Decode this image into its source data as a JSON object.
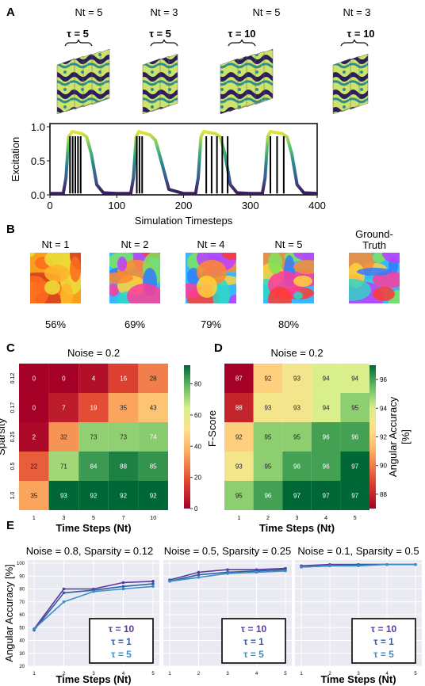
{
  "panels": {
    "A": "A",
    "B": "B",
    "C": "C",
    "D": "D",
    "E": "E"
  },
  "panelA": {
    "groups": [
      {
        "nt_label": "Nt = 5",
        "tau_label": "τ = 5",
        "frames": 5
      },
      {
        "nt_label": "Nt = 3",
        "tau_label": "τ = 5",
        "frames": 3
      },
      {
        "nt_label": "Nt = 5",
        "tau_label": "τ = 10",
        "frames": 5
      },
      {
        "nt_label": "Nt = 3",
        "tau_label": "τ = 10",
        "frames": 3
      }
    ]
  },
  "panelB": {
    "items": [
      {
        "label": "Nt = 1",
        "accuracy": "56%"
      },
      {
        "label": "Nt = 2",
        "accuracy": "69%"
      },
      {
        "label": "Nt = 4",
        "accuracy": "79%"
      },
      {
        "label": "Nt = 5",
        "accuracy": "80%"
      },
      {
        "label": "Ground-Truth",
        "accuracy": ""
      }
    ]
  },
  "colors": {
    "tau10": "#5b3a9e",
    "tau1": "#2e5ea8",
    "tau5": "#3a8fc6",
    "grid_bg": "#e9eaf2"
  },
  "chart_data": [
    {
      "id": "A",
      "type": "line",
      "xlabel": "Simulation Timesteps",
      "ylabel": "Excitation",
      "xlim": [
        0,
        400
      ],
      "ylim": [
        0,
        1.0
      ],
      "xticks": [
        "0",
        "100",
        "200",
        "300",
        "400"
      ],
      "yticks": [
        "0.0",
        "0.5",
        "1.0"
      ],
      "series": [
        {
          "x": [
            0,
            20,
            24,
            28,
            33,
            48,
            55,
            62,
            70,
            80,
            100,
            121,
            125,
            129,
            133,
            150,
            158,
            168,
            178,
            200,
            218,
            222,
            226,
            230,
            248,
            255,
            262,
            270,
            280,
            300,
            318,
            322,
            326,
            330,
            348,
            355,
            362,
            370,
            380,
            400
          ],
          "y": [
            0.02,
            0.02,
            0.25,
            0.85,
            0.93,
            0.9,
            0.85,
            0.6,
            0.15,
            0.03,
            0.02,
            0.02,
            0.25,
            0.85,
            0.93,
            0.88,
            0.8,
            0.45,
            0.08,
            0.02,
            0.02,
            0.25,
            0.85,
            0.93,
            0.9,
            0.85,
            0.6,
            0.15,
            0.03,
            0.02,
            0.02,
            0.25,
            0.85,
            0.93,
            0.9,
            0.85,
            0.6,
            0.15,
            0.03,
            0.02
          ]
        }
      ],
      "vlines": [
        [
          30,
          34,
          38,
          42,
          46
        ],
        [
          130,
          134,
          138
        ],
        [
          234,
          242,
          250,
          258,
          266
        ],
        [
          330,
          340,
          350
        ]
      ]
    },
    {
      "id": "C",
      "type": "heatmap",
      "title": "Noise = 0.2",
      "xlabel": "Time Steps (Nt)",
      "ylabel": "Sparsity",
      "colorbar_label": "F-Score",
      "x": [
        "1",
        "3",
        "5",
        "7",
        "10"
      ],
      "y": [
        "0.12",
        "0.17",
        "0.25",
        "0.5",
        "1.0"
      ],
      "values": [
        [
          0,
          0,
          4,
          16,
          28
        ],
        [
          0,
          7,
          19,
          35,
          43
        ],
        [
          2,
          32,
          73,
          73,
          74
        ],
        [
          22,
          71,
          84,
          88,
          85
        ],
        [
          35,
          93,
          92,
          92,
          92
        ]
      ],
      "colorbar_ticks": [
        "0",
        "20",
        "40",
        "60",
        "80"
      ],
      "vmin": 0,
      "vmax": 92
    },
    {
      "id": "D",
      "type": "heatmap",
      "title": "Noise = 0.2",
      "xlabel": "Time Steps (Nt)",
      "ylabel": "",
      "colorbar_label": "Angular Accuracy [%]",
      "x": [
        "1",
        "2",
        "3",
        "4",
        "5"
      ],
      "y": [
        "",
        "",
        "",
        "",
        ""
      ],
      "values": [
        [
          87,
          92,
          93,
          94,
          94
        ],
        [
          88,
          93,
          93,
          94,
          95
        ],
        [
          92,
          95,
          95,
          96,
          96
        ],
        [
          93,
          95,
          96,
          96,
          97
        ],
        [
          95,
          96,
          97,
          97,
          97
        ]
      ],
      "colorbar_ticks": [
        "88",
        "90",
        "92",
        "94",
        "96"
      ],
      "vmin": 87,
      "vmax": 97
    },
    {
      "id": "E1",
      "type": "line",
      "title": "Noise = 0.8, Sparsity = 0.12",
      "xlabel": "Time Steps (Nt)",
      "ylabel": "Angular Accuracy [%]",
      "x": [
        1,
        2,
        3,
        4,
        5
      ],
      "ylim": [
        20,
        100
      ],
      "yticks": [
        "20",
        "30",
        "40",
        "50",
        "60",
        "70",
        "80",
        "90",
        "100"
      ],
      "series": [
        {
          "name": "τ = 10",
          "values": [
            49,
            80,
            80,
            85,
            86
          ]
        },
        {
          "name": "τ = 1",
          "values": [
            48,
            77,
            79,
            82,
            84
          ]
        },
        {
          "name": "τ = 5",
          "values": [
            49,
            70,
            78,
            80,
            82
          ]
        }
      ]
    },
    {
      "id": "E2",
      "type": "line",
      "title": "Noise = 0.5, Sparsity = 0.25",
      "xlabel": "",
      "x": [
        1,
        2,
        3,
        4,
        5
      ],
      "ylim": [
        20,
        100
      ],
      "series": [
        {
          "name": "τ = 10",
          "values": [
            87,
            93,
            95,
            95,
            96
          ]
        },
        {
          "name": "τ = 1",
          "values": [
            86,
            91,
            93,
            94,
            95
          ]
        },
        {
          "name": "τ = 5",
          "values": [
            86,
            89,
            92,
            93,
            94
          ]
        }
      ]
    },
    {
      "id": "E3",
      "type": "line",
      "title": "Noise = 0.1, Sparsity = 0.5",
      "xlabel": "Time Steps (Nt)",
      "x": [
        1,
        2,
        3,
        4,
        5
      ],
      "ylim": [
        20,
        100
      ],
      "series": [
        {
          "name": "τ = 10",
          "values": [
            98,
            99,
            99,
            99,
            99
          ]
        },
        {
          "name": "τ = 1",
          "values": [
            97,
            98,
            99,
            99,
            99
          ]
        },
        {
          "name": "τ = 5",
          "values": [
            97,
            98,
            98,
            99,
            99
          ]
        }
      ]
    }
  ]
}
